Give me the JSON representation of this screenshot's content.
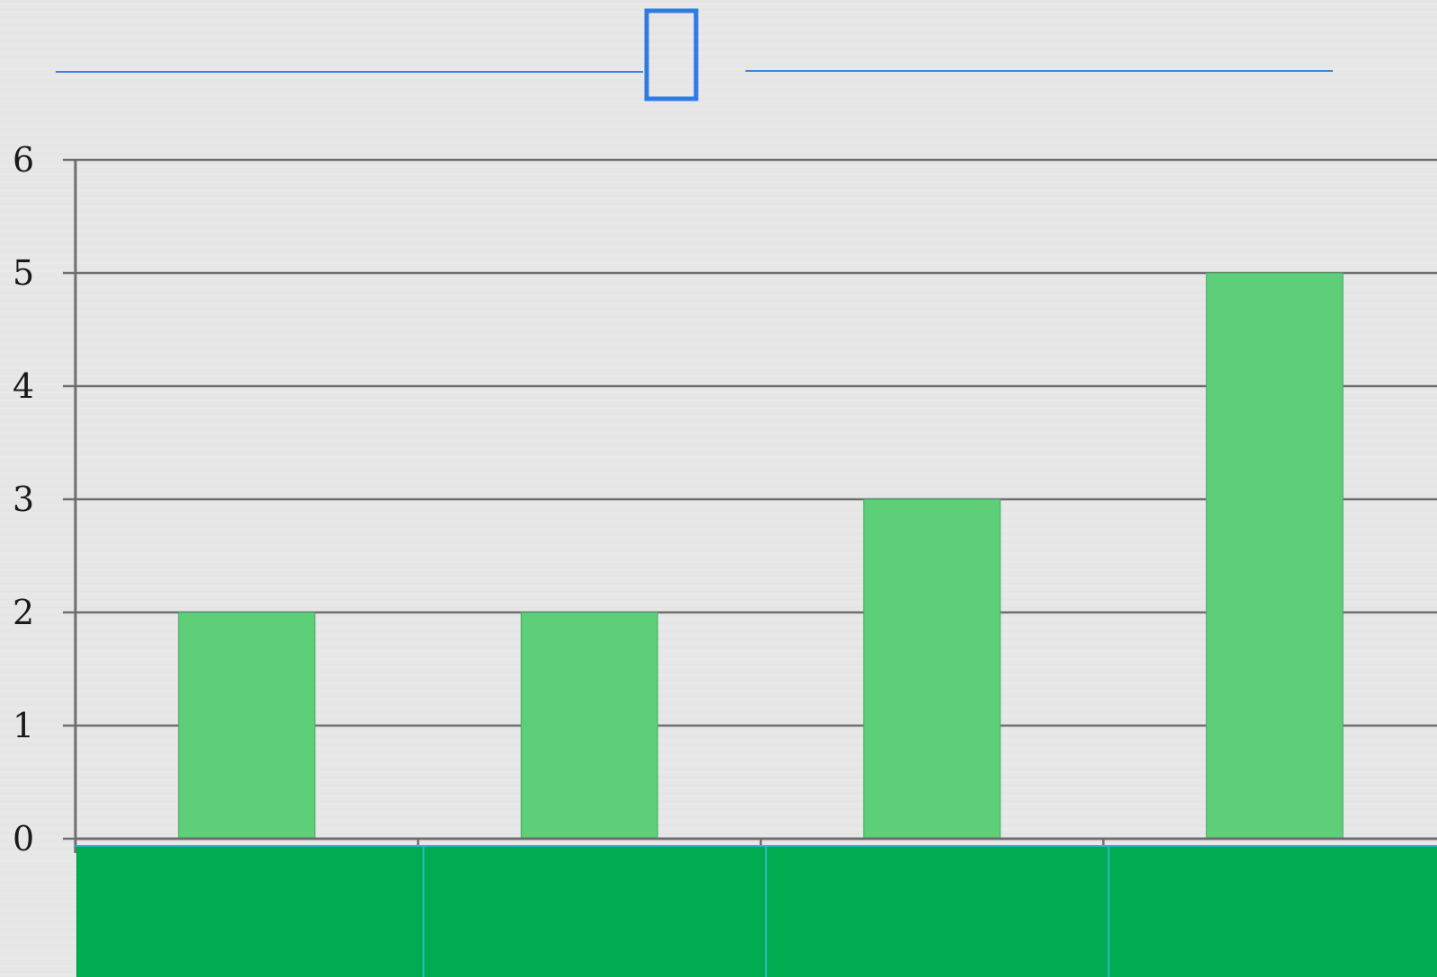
{
  "title": "",
  "colors": {
    "bar": "#5ccf78",
    "bar_edge": "#4aa865",
    "gridline": "#6e6e6e",
    "axis": "#6e6e6e",
    "header_line": "#3b82e8",
    "selection_box": "#2f7be6",
    "category_strip": "#00ac4f",
    "category_divider": "#2ab8c8"
  },
  "chart_data": {
    "type": "bar",
    "categories": [
      "",
      "",
      "",
      ""
    ],
    "values": [
      2,
      2,
      3,
      5
    ],
    "ylim": [
      0,
      6
    ],
    "yticks": [
      "0",
      "1",
      "2",
      "3",
      "4",
      "5",
      "6"
    ],
    "grid": true,
    "legend": "none"
  }
}
